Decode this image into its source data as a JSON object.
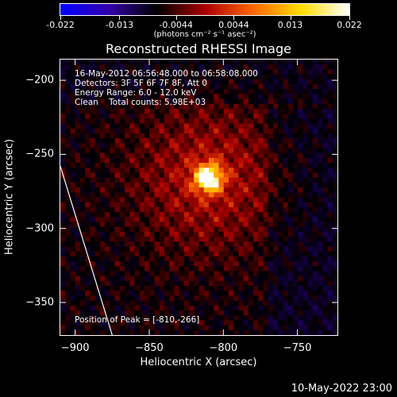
{
  "colorbar": {
    "tick_labels": [
      "-0.022",
      "-0.013",
      "-0.0044",
      "0.0044",
      "0.013",
      "0.022"
    ],
    "units": "(photons cm⁻² s⁻¹ asec⁻²)",
    "range": [
      -0.022,
      0.022
    ],
    "colors": [
      "#0000ff",
      "#3300aa",
      "#000000",
      "#aa0000",
      "#ff6600",
      "#ffdd00",
      "#ffffff"
    ]
  },
  "chart_data": {
    "type": "heatmap",
    "title": "Reconstructed RHESSI Image",
    "xlabel": "Heliocentric X (arcsec)",
    "ylabel": "Heliocentric Y (arcsec)",
    "xlim": [
      -910,
      -723
    ],
    "ylim": [
      -372,
      -186
    ],
    "x_ticks": [
      -900,
      -850,
      -800,
      -750
    ],
    "y_ticks": [
      -200,
      -250,
      -300,
      -350
    ],
    "x_tick_labels": [
      "−900",
      "−850",
      "−800",
      "−750"
    ],
    "y_tick_labels": [
      "−200",
      "−250",
      "−300",
      "−350"
    ],
    "peak": [
      -810,
      -266
    ],
    "limb_line": [
      [
        -910,
        -258
      ],
      [
        -875,
        -372
      ]
    ],
    "annotations": [
      "16-May-2012 06:56:48.000 to 06:58:08.000",
      "Detectors: 3F 5F 6F 7F 8F, Att 0",
      "Energy Range: 6.0 - 12.0 keV",
      "Clean    Total counts: 5.98E+03"
    ],
    "peak_label": "Position of Peak = [-810,-266]"
  },
  "footer": {
    "date": "10-May-2022 23:00"
  }
}
